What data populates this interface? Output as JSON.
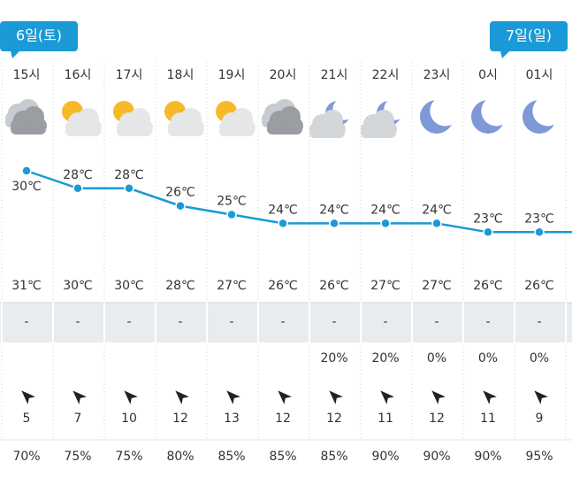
{
  "badges": [
    {
      "label": "6일(토)",
      "column": 0
    },
    {
      "label": "7일(일)",
      "column": 10
    }
  ],
  "hours": [
    {
      "time": "15시",
      "temp": 30,
      "temp_label": "30℃",
      "feels": "31℃",
      "precip": "-",
      "prob": null,
      "wind": 5,
      "humidity": "70%"
    },
    {
      "time": "16시",
      "temp": 28,
      "temp_label": "28℃",
      "feels": "30℃",
      "precip": "-",
      "prob": null,
      "wind": 7,
      "humidity": "75%"
    },
    {
      "time": "17시",
      "temp": 28,
      "temp_label": "28℃",
      "feels": "30℃",
      "precip": "-",
      "prob": null,
      "wind": 10,
      "humidity": "75%"
    },
    {
      "time": "18시",
      "temp": 26,
      "temp_label": "26℃",
      "feels": "28℃",
      "precip": "-",
      "prob": null,
      "wind": 12,
      "humidity": "80%"
    },
    {
      "time": "19시",
      "temp": 25,
      "temp_label": "25℃",
      "feels": "27℃",
      "precip": "-",
      "prob": null,
      "wind": 13,
      "humidity": "85%"
    },
    {
      "time": "20시",
      "temp": 24,
      "temp_label": "24℃",
      "feels": "26℃",
      "precip": "-",
      "prob": null,
      "wind": 12,
      "humidity": "85%"
    },
    {
      "time": "21시",
      "temp": 24,
      "temp_label": "24℃",
      "feels": "26℃",
      "precip": "-",
      "prob": "20%",
      "wind": 12,
      "humidity": "85%"
    },
    {
      "time": "22시",
      "temp": 24,
      "temp_label": "24℃",
      "feels": "27℃",
      "precip": "-",
      "prob": "20%",
      "wind": 11,
      "humidity": "90%"
    },
    {
      "time": "23시",
      "temp": 24,
      "temp_label": "24℃",
      "feels": "27℃",
      "precip": "-",
      "prob": "0%",
      "wind": 12,
      "humidity": "90%"
    },
    {
      "time": "0시",
      "temp": 23,
      "temp_label": "23℃",
      "feels": "26℃",
      "precip": "-",
      "prob": "0%",
      "wind": 11,
      "humidity": "90%"
    },
    {
      "time": "01시",
      "temp": 23,
      "temp_label": "23℃",
      "feels": "26℃",
      "precip": "-",
      "prob": "0%",
      "wind": 9,
      "humidity": "95%"
    }
  ]
}
